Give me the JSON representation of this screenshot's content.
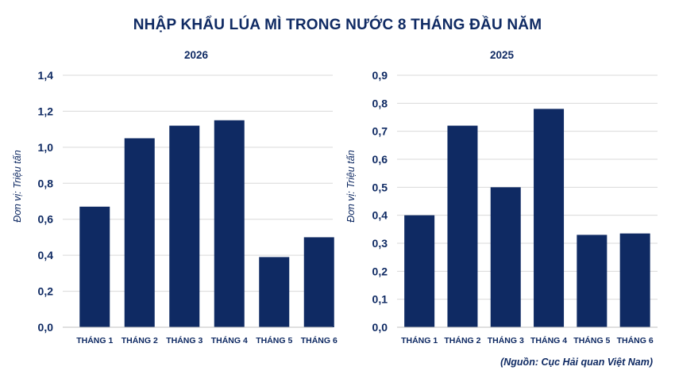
{
  "header": {
    "title": "NHẬP KHẨU LÚA MÌ TRONG NƯỚC 8 THÁNG ĐẦU NĂM"
  },
  "footer": {
    "source": "(Nguồn: Cục Hải quan Việt Nam)"
  },
  "colors": {
    "bar": "#0f2a63",
    "text": "#0f2a63",
    "grid": "#d9d9d9"
  },
  "chart_data": [
    {
      "type": "bar",
      "title": "2026",
      "xlabel": "",
      "ylabel": "Đơn vị: Triệu tấn",
      "categories": [
        "THÁNG 1",
        "THÁNG 2",
        "THÁNG 3",
        "THÁNG 4",
        "THÁNG 5",
        "THÁNG 6"
      ],
      "values": [
        0.67,
        1.05,
        1.12,
        1.15,
        0.39,
        0.5
      ],
      "ylim": [
        0,
        1.4
      ],
      "yticks": [
        "0,0",
        "0,2",
        "0,4",
        "0,6",
        "0,8",
        "1,0",
        "1,2",
        "1,4"
      ],
      "grid": true,
      "legend": "none"
    },
    {
      "type": "bar",
      "title": "2025",
      "xlabel": "",
      "ylabel": "Đơn vị: Triệu tấn",
      "categories": [
        "THÁNG 1",
        "THÁNG 2",
        "THÁNG 3",
        "THÁNG 4",
        "THÁNG 5",
        "THÁNG 6"
      ],
      "values": [
        0.4,
        0.72,
        0.5,
        0.78,
        0.33,
        0.335
      ],
      "ylim": [
        0,
        0.9
      ],
      "yticks": [
        "0,0",
        "0,1",
        "0,2",
        "0,3",
        "0,4",
        "0,5",
        "0,6",
        "0,7",
        "0,8",
        "0,9"
      ],
      "grid": true,
      "legend": "none"
    }
  ]
}
